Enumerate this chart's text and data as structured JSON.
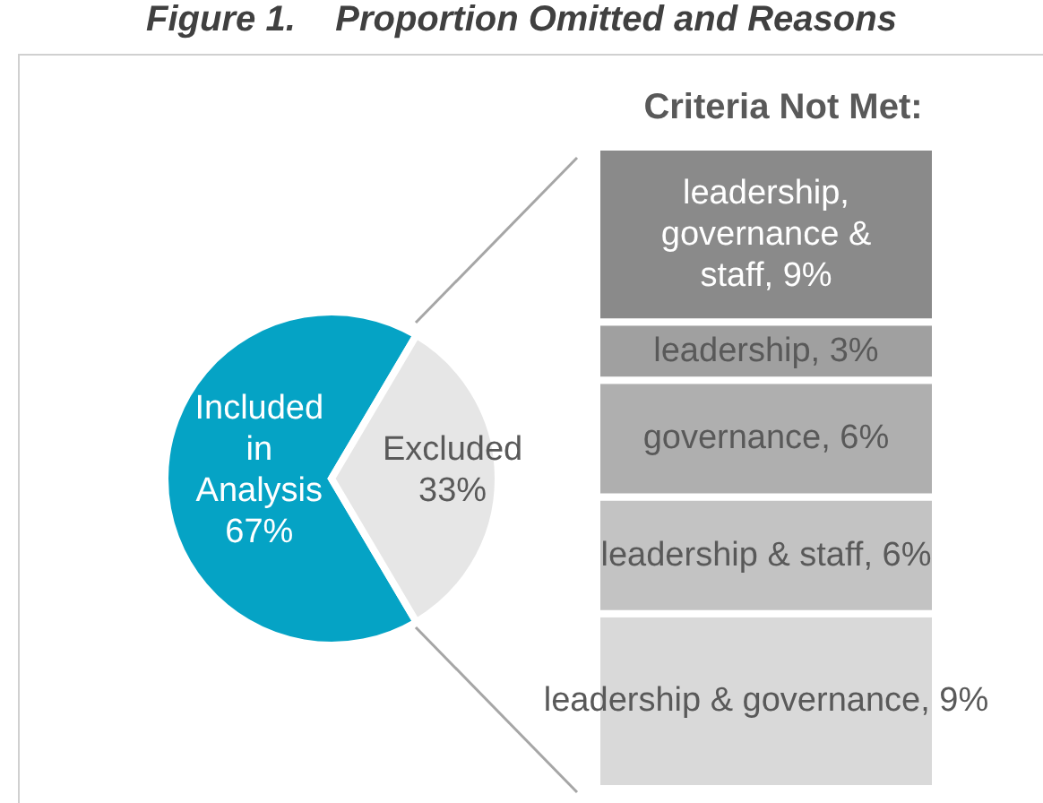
{
  "chart_data": [
    {
      "type": "pie",
      "title": "Figure 1.    Proportion Omitted and Reasons",
      "categories": [
        "Included in Analysis",
        "Excluded"
      ],
      "values": [
        67,
        33
      ],
      "value_labels": [
        "67%",
        "33%"
      ],
      "colors": [
        "#05a3c5",
        "#e6e6e6"
      ]
    },
    {
      "type": "bar",
      "stacked": true,
      "title": "Criteria Not Met:",
      "categories": [
        null
      ],
      "series": [
        {
          "color": "#d9d9d9",
          "values": [
            9
          ],
          "value_labels": [
            "leadership & governance, 9%"
          ]
        },
        {
          "color": "#c3c3c3",
          "values": [
            6
          ],
          "value_labels": [
            "leadership & staff, 6%"
          ]
        },
        {
          "color": "#afafaf",
          "values": [
            6
          ],
          "value_labels": [
            "governance, 6%"
          ]
        },
        {
          "color": "#a0a0a0",
          "values": [
            3
          ],
          "value_labels": [
            "leadership, 3%"
          ]
        },
        {
          "color": "#8a8a8a",
          "values": [
            9
          ],
          "value_labels": [
            "leadership, governance & staff, 9%"
          ]
        }
      ]
    }
  ]
}
